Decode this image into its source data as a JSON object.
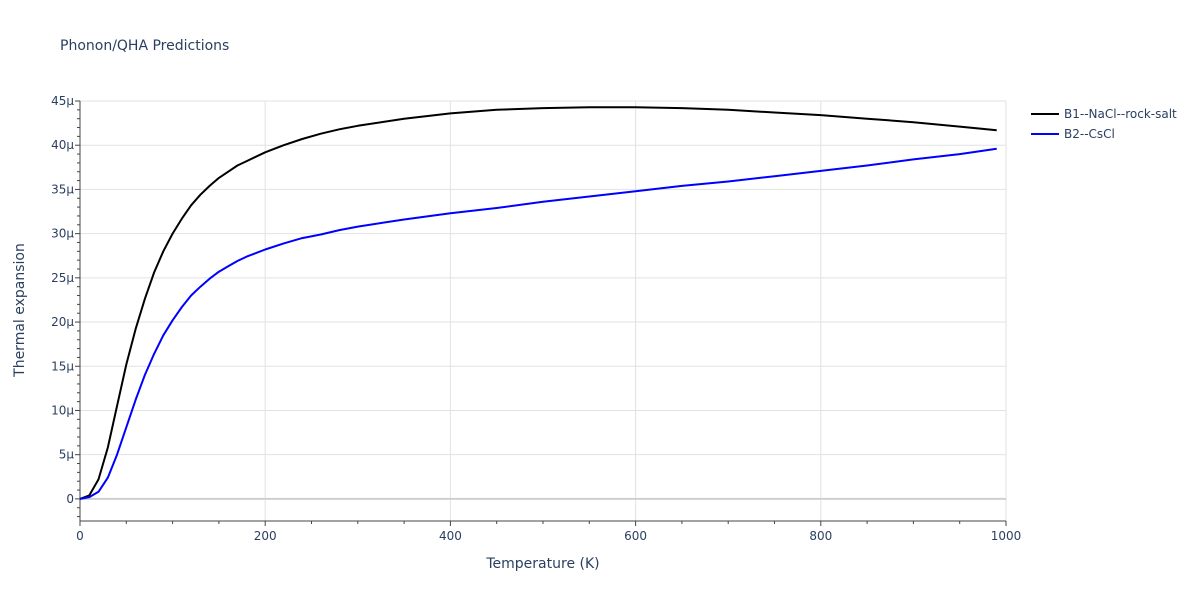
{
  "chart_data": {
    "type": "line",
    "title": "Phonon/QHA Predictions",
    "xlabel": "Temperature (K)",
    "ylabel": "Thermal expansion",
    "xlim": [
      0,
      1000
    ],
    "ylim": [
      -2.5,
      45
    ],
    "x_ticks": [
      0,
      200,
      400,
      600,
      800,
      1000
    ],
    "x_tick_labels": [
      "0",
      "200",
      "400",
      "600",
      "800",
      "1000"
    ],
    "y_ticks": [
      0,
      5,
      10,
      15,
      20,
      25,
      30,
      35,
      40,
      45
    ],
    "y_tick_labels": [
      "0",
      "5μ",
      "10μ",
      "15μ",
      "20μ",
      "25μ",
      "30μ",
      "35μ",
      "40μ",
      "45μ"
    ],
    "y_unit_scale": "1e-6",
    "grid": true,
    "legend_position": "top-right",
    "series": [
      {
        "name": "B1--NaCl--rock-salt",
        "color": "#000000",
        "x": [
          0,
          10,
          20,
          30,
          40,
          50,
          60,
          70,
          80,
          90,
          100,
          110,
          120,
          130,
          140,
          150,
          160,
          170,
          180,
          200,
          220,
          240,
          260,
          280,
          300,
          350,
          400,
          450,
          500,
          550,
          600,
          650,
          700,
          750,
          800,
          850,
          900,
          950,
          990
        ],
        "y": [
          0,
          0.4,
          2.2,
          5.8,
          10.5,
          15.2,
          19.2,
          22.6,
          25.6,
          28.0,
          30.0,
          31.7,
          33.2,
          34.4,
          35.4,
          36.3,
          37.0,
          37.7,
          38.2,
          39.2,
          40.0,
          40.7,
          41.3,
          41.8,
          42.2,
          43.0,
          43.6,
          44.0,
          44.2,
          44.3,
          44.3,
          44.2,
          44.0,
          43.7,
          43.4,
          43.0,
          42.6,
          42.1,
          41.7
        ]
      },
      {
        "name": "B2--CsCl",
        "color": "#0000ff",
        "x": [
          0,
          10,
          20,
          30,
          40,
          50,
          60,
          70,
          80,
          90,
          100,
          110,
          120,
          130,
          140,
          150,
          160,
          170,
          180,
          200,
          220,
          240,
          260,
          280,
          300,
          350,
          400,
          450,
          500,
          550,
          600,
          650,
          700,
          750,
          800,
          850,
          900,
          950,
          990
        ],
        "y": [
          0,
          0.2,
          0.8,
          2.4,
          5.0,
          8.1,
          11.2,
          14.0,
          16.4,
          18.5,
          20.2,
          21.7,
          23.0,
          24.0,
          24.9,
          25.7,
          26.3,
          26.9,
          27.4,
          28.2,
          28.9,
          29.5,
          29.9,
          30.4,
          30.8,
          31.6,
          32.3,
          32.9,
          33.6,
          34.2,
          34.8,
          35.4,
          35.9,
          36.5,
          37.1,
          37.7,
          38.4,
          39.0,
          39.6
        ]
      }
    ]
  }
}
